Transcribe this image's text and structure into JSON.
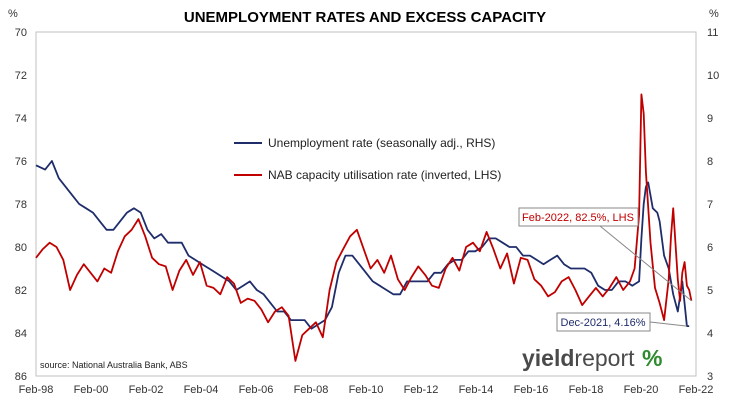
{
  "chart_data": {
    "type": "line",
    "title": "UNEMPLOYMENT RATES AND EXCESS CAPACITY",
    "left_axis": {
      "unit": "%",
      "range": [
        70,
        86
      ],
      "inverted": true,
      "ticks": [
        "70",
        "72",
        "74",
        "76",
        "78",
        "80",
        "82",
        "84",
        "86"
      ]
    },
    "right_axis": {
      "unit": "%",
      "range": [
        3,
        11
      ],
      "ticks": [
        "3",
        "4",
        "5",
        "6",
        "7",
        "8",
        "9",
        "10",
        "11"
      ]
    },
    "x_axis": {
      "range": [
        "1998-02",
        "2022-04"
      ],
      "ticks": [
        "Feb-98",
        "Feb-00",
        "Feb-02",
        "Feb-04",
        "Feb-06",
        "Feb-08",
        "Feb-10",
        "Feb-12",
        "Feb-14",
        "Feb-16",
        "Feb-18",
        "Feb-20",
        "Feb-22"
      ]
    },
    "grid": false,
    "legend_placement": "upper-center",
    "series": [
      {
        "name": "Unemployment rate (seasonally adj., RHS)",
        "axis": "right",
        "color": "#1f2d6b",
        "points": [
          [
            "1998-02",
            7.9
          ],
          [
            "1998-06",
            7.8
          ],
          [
            "1998-09",
            8.0
          ],
          [
            "1998-12",
            7.6
          ],
          [
            "1999-03",
            7.4
          ],
          [
            "1999-06",
            7.2
          ],
          [
            "1999-09",
            7.0
          ],
          [
            "1999-12",
            6.9
          ],
          [
            "2000-03",
            6.8
          ],
          [
            "2000-06",
            6.6
          ],
          [
            "2000-09",
            6.4
          ],
          [
            "2000-12",
            6.4
          ],
          [
            "2001-03",
            6.6
          ],
          [
            "2001-06",
            6.8
          ],
          [
            "2001-09",
            6.9
          ],
          [
            "2001-12",
            6.8
          ],
          [
            "2002-03",
            6.4
          ],
          [
            "2002-06",
            6.2
          ],
          [
            "2002-09",
            6.3
          ],
          [
            "2002-12",
            6.1
          ],
          [
            "2003-03",
            6.1
          ],
          [
            "2003-06",
            6.1
          ],
          [
            "2003-09",
            5.8
          ],
          [
            "2003-12",
            5.7
          ],
          [
            "2004-03",
            5.6
          ],
          [
            "2004-06",
            5.5
          ],
          [
            "2004-09",
            5.4
          ],
          [
            "2004-12",
            5.3
          ],
          [
            "2005-03",
            5.2
          ],
          [
            "2005-06",
            5.0
          ],
          [
            "2005-09",
            5.1
          ],
          [
            "2005-12",
            5.2
          ],
          [
            "2006-03",
            5.0
          ],
          [
            "2006-06",
            4.9
          ],
          [
            "2006-09",
            4.7
          ],
          [
            "2006-12",
            4.5
          ],
          [
            "2007-03",
            4.5
          ],
          [
            "2007-06",
            4.3
          ],
          [
            "2007-09",
            4.3
          ],
          [
            "2007-12",
            4.3
          ],
          [
            "2008-03",
            4.1
          ],
          [
            "2008-06",
            4.2
          ],
          [
            "2008-09",
            4.3
          ],
          [
            "2008-12",
            4.6
          ],
          [
            "2009-03",
            5.4
          ],
          [
            "2009-06",
            5.8
          ],
          [
            "2009-09",
            5.8
          ],
          [
            "2009-12",
            5.6
          ],
          [
            "2010-03",
            5.4
          ],
          [
            "2010-06",
            5.2
          ],
          [
            "2010-09",
            5.1
          ],
          [
            "2010-12",
            5.0
          ],
          [
            "2011-03",
            4.9
          ],
          [
            "2011-06",
            4.9
          ],
          [
            "2011-09",
            5.2
          ],
          [
            "2011-12",
            5.2
          ],
          [
            "2012-03",
            5.2
          ],
          [
            "2012-06",
            5.2
          ],
          [
            "2012-09",
            5.4
          ],
          [
            "2012-12",
            5.4
          ],
          [
            "2013-03",
            5.6
          ],
          [
            "2013-06",
            5.7
          ],
          [
            "2013-09",
            5.7
          ],
          [
            "2013-12",
            5.9
          ],
          [
            "2014-03",
            5.9
          ],
          [
            "2014-06",
            6.0
          ],
          [
            "2014-09",
            6.2
          ],
          [
            "2014-12",
            6.2
          ],
          [
            "2015-03",
            6.1
          ],
          [
            "2015-06",
            6.0
          ],
          [
            "2015-09",
            6.0
          ],
          [
            "2015-12",
            5.8
          ],
          [
            "2016-03",
            5.8
          ],
          [
            "2016-06",
            5.7
          ],
          [
            "2016-09",
            5.6
          ],
          [
            "2016-12",
            5.7
          ],
          [
            "2017-03",
            5.8
          ],
          [
            "2017-06",
            5.6
          ],
          [
            "2017-09",
            5.5
          ],
          [
            "2017-12",
            5.5
          ],
          [
            "2018-03",
            5.5
          ],
          [
            "2018-06",
            5.4
          ],
          [
            "2018-09",
            5.1
          ],
          [
            "2018-12",
            5.0
          ],
          [
            "2019-03",
            5.0
          ],
          [
            "2019-06",
            5.2
          ],
          [
            "2019-09",
            5.2
          ],
          [
            "2019-12",
            5.1
          ],
          [
            "2020-03",
            5.2
          ],
          [
            "2020-04",
            6.2
          ],
          [
            "2020-05",
            7.0
          ],
          [
            "2020-06",
            7.4
          ],
          [
            "2020-07",
            7.5
          ],
          [
            "2020-09",
            6.9
          ],
          [
            "2020-11",
            6.8
          ],
          [
            "2020-12",
            6.6
          ],
          [
            "2021-02",
            5.8
          ],
          [
            "2021-04",
            5.5
          ],
          [
            "2021-06",
            4.9
          ],
          [
            "2021-08",
            4.5
          ],
          [
            "2021-10",
            5.2
          ],
          [
            "2021-12",
            4.16
          ],
          [
            "2022-01",
            4.16
          ]
        ]
      },
      {
        "name": "NAB capacity utilisation rate (inverted, LHS)",
        "axis": "left",
        "color": "#c00000",
        "points": [
          [
            "1998-02",
            80.5
          ],
          [
            "1998-05",
            80.1
          ],
          [
            "1998-08",
            79.8
          ],
          [
            "1998-11",
            80.0
          ],
          [
            "1999-02",
            80.6
          ],
          [
            "1999-05",
            82.0
          ],
          [
            "1999-08",
            81.3
          ],
          [
            "1999-11",
            80.8
          ],
          [
            "2000-02",
            81.2
          ],
          [
            "2000-05",
            81.6
          ],
          [
            "2000-08",
            81.0
          ],
          [
            "2000-11",
            81.2
          ],
          [
            "2001-02",
            80.2
          ],
          [
            "2001-05",
            79.5
          ],
          [
            "2001-08",
            79.2
          ],
          [
            "2001-11",
            78.7
          ],
          [
            "2002-02",
            79.5
          ],
          [
            "2002-05",
            80.5
          ],
          [
            "2002-08",
            80.8
          ],
          [
            "2002-11",
            80.9
          ],
          [
            "2003-02",
            82.0
          ],
          [
            "2003-05",
            81.1
          ],
          [
            "2003-08",
            80.6
          ],
          [
            "2003-11",
            81.3
          ],
          [
            "2004-02",
            80.7
          ],
          [
            "2004-05",
            81.8
          ],
          [
            "2004-08",
            81.9
          ],
          [
            "2004-11",
            82.2
          ],
          [
            "2005-02",
            81.4
          ],
          [
            "2005-05",
            81.7
          ],
          [
            "2005-08",
            82.6
          ],
          [
            "2005-11",
            82.4
          ],
          [
            "2006-02",
            82.5
          ],
          [
            "2006-05",
            82.9
          ],
          [
            "2006-08",
            83.5
          ],
          [
            "2006-11",
            83.0
          ],
          [
            "2007-02",
            82.8
          ],
          [
            "2007-05",
            83.2
          ],
          [
            "2007-08",
            85.3
          ],
          [
            "2007-11",
            84.1
          ],
          [
            "2008-02",
            83.8
          ],
          [
            "2008-05",
            83.5
          ],
          [
            "2008-08",
            84.2
          ],
          [
            "2008-11",
            82.0
          ],
          [
            "2009-02",
            80.7
          ],
          [
            "2009-05",
            80.1
          ],
          [
            "2009-08",
            79.5
          ],
          [
            "2009-11",
            79.2
          ],
          [
            "2010-02",
            80.1
          ],
          [
            "2010-05",
            81.0
          ],
          [
            "2010-08",
            80.6
          ],
          [
            "2010-11",
            81.2
          ],
          [
            "2011-02",
            80.4
          ],
          [
            "2011-05",
            81.5
          ],
          [
            "2011-08",
            82.0
          ],
          [
            "2011-11",
            81.4
          ],
          [
            "2012-02",
            80.9
          ],
          [
            "2012-05",
            81.3
          ],
          [
            "2012-08",
            81.8
          ],
          [
            "2012-11",
            81.9
          ],
          [
            "2013-02",
            81.0
          ],
          [
            "2013-05",
            80.5
          ],
          [
            "2013-08",
            81.1
          ],
          [
            "2013-11",
            80.0
          ],
          [
            "2014-02",
            79.8
          ],
          [
            "2014-05",
            80.2
          ],
          [
            "2014-08",
            79.3
          ],
          [
            "2014-11",
            80.1
          ],
          [
            "2015-02",
            81.0
          ],
          [
            "2015-05",
            80.3
          ],
          [
            "2015-08",
            81.7
          ],
          [
            "2015-11",
            80.5
          ],
          [
            "2016-02",
            80.6
          ],
          [
            "2016-05",
            81.5
          ],
          [
            "2016-08",
            81.8
          ],
          [
            "2016-11",
            82.3
          ],
          [
            "2017-02",
            82.1
          ],
          [
            "2017-05",
            81.6
          ],
          [
            "2017-08",
            81.4
          ],
          [
            "2017-11",
            82.0
          ],
          [
            "2018-02",
            82.7
          ],
          [
            "2018-05",
            82.3
          ],
          [
            "2018-08",
            81.9
          ],
          [
            "2018-11",
            82.3
          ],
          [
            "2019-02",
            81.9
          ],
          [
            "2019-05",
            81.4
          ],
          [
            "2019-08",
            82.0
          ],
          [
            "2019-11",
            81.6
          ],
          [
            "2020-01",
            81.0
          ],
          [
            "2020-03",
            78.5
          ],
          [
            "2020-04",
            72.9
          ],
          [
            "2020-05",
            73.8
          ],
          [
            "2020-06",
            76.5
          ],
          [
            "2020-08",
            79.8
          ],
          [
            "2020-10",
            81.9
          ],
          [
            "2020-12",
            82.6
          ],
          [
            "2021-02",
            83.4
          ],
          [
            "2021-04",
            81.5
          ],
          [
            "2021-05",
            79.5
          ],
          [
            "2021-06",
            78.2
          ],
          [
            "2021-08",
            81.5
          ],
          [
            "2021-09",
            82.5
          ],
          [
            "2021-10",
            81.2
          ],
          [
            "2021-11",
            80.7
          ],
          [
            "2021-12",
            81.8
          ],
          [
            "2022-01",
            82.0
          ],
          [
            "2022-02",
            82.5
          ]
        ]
      }
    ],
    "annotations": [
      {
        "text": "Feb-2022, 82.5%, LHS",
        "color": "#c00000",
        "target": [
          "2022-02",
          82.5
        ],
        "axis": "left"
      },
      {
        "text": "Dec-2021, 4.16%",
        "color": "#1f2d6b",
        "target": [
          "2021-12",
          4.16
        ],
        "axis": "right"
      }
    ],
    "source": "source: National Australia Bank, ABS"
  },
  "logo": {
    "word_a": "yield",
    "word_b": "report",
    "symbol": "%"
  },
  "colors": {
    "logo_main": "#4a4a4a",
    "logo_green": "#2e8b2e",
    "logo_red": "#c00000"
  }
}
